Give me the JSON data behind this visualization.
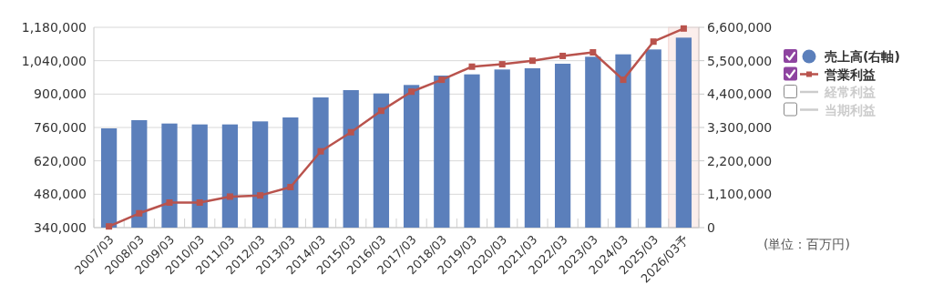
{
  "chart_data": {
    "type": "bar",
    "categories": [
      "2007/03",
      "2008/03",
      "2009/03",
      "2010/03",
      "2011/03",
      "2012/03",
      "2013/03",
      "2014/03",
      "2015/03",
      "2016/03",
      "2017/03",
      "2018/03",
      "2019/03",
      "2020/03",
      "2021/03",
      "2022/03",
      "2023/03",
      "2024/03",
      "2025/03",
      "2026/03予"
    ],
    "series": [
      {
        "name": "売上高(右軸)",
        "axis": "y2",
        "color": "#5b7fbb",
        "values": [
          3270000,
          3540000,
          3430000,
          3400000,
          3400000,
          3500000,
          3630000,
          4290000,
          4530000,
          4420000,
          4700000,
          5010000,
          5050000,
          5210000,
          5250000,
          5400000,
          5630000,
          5710000,
          5870000,
          6260000
        ]
      },
      {
        "name": "営業利益",
        "type": "line",
        "axis": "y",
        "color": "#b9534d",
        "marker": "square",
        "values": [
          345000,
          400000,
          445000,
          445000,
          470000,
          475000,
          510000,
          660000,
          740000,
          830000,
          910000,
          960000,
          1015000,
          1025000,
          1040000,
          1060000,
          1075000,
          960000,
          1120000,
          1175000
        ]
      },
      {
        "name": "経常利益",
        "type": "line",
        "axis": "y",
        "color": "#cccccc",
        "values": [
          null,
          null,
          null,
          null,
          null,
          null,
          null,
          null,
          null,
          null,
          null,
          null,
          null,
          null,
          null,
          null,
          null,
          null,
          null,
          null
        ]
      },
      {
        "name": "当期利益",
        "type": "line",
        "axis": "y",
        "color": "#cccccc",
        "values": [
          null,
          null,
          null,
          null,
          null,
          null,
          null,
          null,
          null,
          null,
          null,
          null,
          null,
          null,
          null,
          null,
          null,
          null,
          null,
          null
        ]
      }
    ],
    "ylim": [
      340000,
      1180000
    ],
    "yticks": [
      {
        "value": 340000,
        "label": "340,000"
      },
      {
        "value": 480000,
        "label": "480,000"
      },
      {
        "value": 620000,
        "label": "620,000"
      },
      {
        "value": 760000,
        "label": "760,000"
      },
      {
        "value": 900000,
        "label": "900,000"
      },
      {
        "value": 1040000,
        "label": "1,040,000"
      },
      {
        "value": 1180000,
        "label": "1,180,000"
      }
    ],
    "y2lim": [
      0,
      6600000
    ],
    "y2ticks": [
      0,
      {
        "value": 1100000,
        "label": "1,100,000"
      },
      {
        "value": 2200000,
        "label": "2,200,000"
      },
      {
        "value": 3300000,
        "label": "3,300,000"
      },
      {
        "value": 4400000,
        "label": "4,400,000"
      },
      {
        "value": 5500000,
        "label": "5,500,000"
      },
      {
        "value": 6600000,
        "label": "6,600,000"
      }
    ],
    "bands": [
      {
        "axis": "x",
        "from": "2026/03予",
        "to": "2026/03予",
        "color": "#fbeeec"
      }
    ],
    "annotations": [
      "(単位：百万円)"
    ],
    "grid": "y",
    "legend": "right"
  }
}
